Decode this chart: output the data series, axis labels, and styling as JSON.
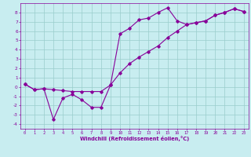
{
  "xlabel": "Windchill (Refroidissement éolien,°C)",
  "xlim_min": -0.5,
  "xlim_max": 23.5,
  "ylim_min": -4.5,
  "ylim_max": 9.0,
  "yticks": [
    -4,
    -3,
    -2,
    -1,
    0,
    1,
    2,
    3,
    4,
    5,
    6,
    7,
    8
  ],
  "xticks": [
    0,
    1,
    2,
    3,
    4,
    5,
    6,
    7,
    8,
    9,
    10,
    11,
    12,
    13,
    14,
    15,
    16,
    17,
    18,
    19,
    20,
    21,
    22,
    23
  ],
  "bg_color": "#c8edf0",
  "grid_color": "#99cccc",
  "line_color": "#880099",
  "line1_x": [
    0,
    1,
    2,
    3,
    4,
    5,
    6,
    7,
    8,
    9,
    10,
    11,
    12,
    13,
    14,
    15,
    16,
    17,
    18,
    19,
    20,
    21,
    22,
    23
  ],
  "line1_y": [
    0.3,
    -0.3,
    -0.2,
    -3.5,
    -1.2,
    -0.8,
    -1.4,
    -2.2,
    -2.2,
    0.2,
    5.7,
    6.3,
    7.2,
    7.4,
    8.0,
    8.5,
    7.1,
    6.7,
    6.9,
    7.1,
    7.7,
    8.0,
    8.4,
    8.1
  ],
  "line2_x": [
    0,
    1,
    2,
    3,
    4,
    5,
    6,
    7,
    8,
    9,
    10,
    11,
    12,
    13,
    14,
    15,
    16,
    17,
    18,
    19,
    20,
    21,
    22,
    23
  ],
  "line2_y": [
    0.3,
    -0.3,
    -0.2,
    -0.3,
    -0.4,
    -0.5,
    -0.5,
    -0.5,
    -0.5,
    0.2,
    1.5,
    2.5,
    3.2,
    3.8,
    4.4,
    5.3,
    6.0,
    6.7,
    6.9,
    7.1,
    7.7,
    8.0,
    8.4,
    8.1
  ]
}
